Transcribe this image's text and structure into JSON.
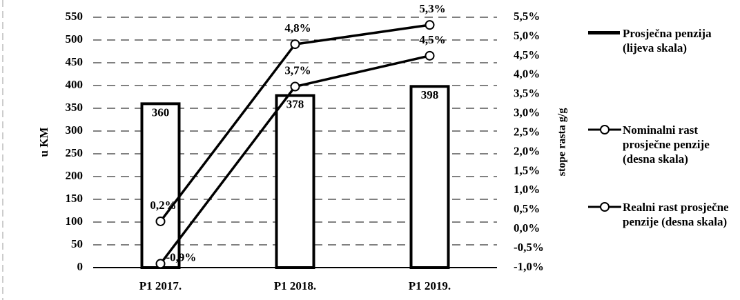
{
  "chart_data": {
    "type": "bar",
    "categories": [
      "P1 2017.",
      "P1 2018.",
      "P1 2019."
    ],
    "y_label": "u KM",
    "y2_label": "stope rasta g/g",
    "series": [
      {
        "name": "Prosječna penzija (lijeva skala)",
        "type": "bar",
        "color": "#000000",
        "values": [
          360,
          378,
          398
        ]
      },
      {
        "name": "Nominalni rast prosječne penzije (desna skala)",
        "type": "line",
        "axis": "y2",
        "color": "#000000",
        "values": [
          0.2,
          4.8,
          5.3
        ],
        "value_labels": [
          "0,2%",
          "4,8%",
          "5,3%"
        ]
      },
      {
        "name": "Realni rast prosječne penzije (desna skala)",
        "type": "line",
        "axis": "y2",
        "color": "#000000",
        "values": [
          -0.9,
          3.7,
          4.5
        ],
        "value_labels": [
          "-0,9%",
          "3,7%",
          "4,5%"
        ]
      }
    ],
    "ylim": [
      0,
      550
    ],
    "yticks": [
      0,
      50,
      100,
      150,
      200,
      250,
      300,
      350,
      400,
      450,
      500,
      550
    ],
    "y2lim": [
      -1.0,
      5.5
    ],
    "y2ticks": [
      {
        "value": -1.0,
        "label": "-1,0%"
      },
      {
        "value": -0.5,
        "label": "-0,5%"
      },
      {
        "value": 0.0,
        "label": "0,0%"
      },
      {
        "value": 0.5,
        "label": "0,5%"
      },
      {
        "value": 1.0,
        "label": "1,0%"
      },
      {
        "value": 1.5,
        "label": "1,5%"
      },
      {
        "value": 2.0,
        "label": "2,0%"
      },
      {
        "value": 2.5,
        "label": "2,5%"
      },
      {
        "value": 3.0,
        "label": "3,0%"
      },
      {
        "value": 3.5,
        "label": "3,5%"
      },
      {
        "value": 4.0,
        "label": "4,0%"
      },
      {
        "value": 4.5,
        "label": "4,5%"
      },
      {
        "value": 5.0,
        "label": "5,0%"
      },
      {
        "value": 5.5,
        "label": "5,5%"
      }
    ],
    "grid": true,
    "legend": "right"
  }
}
